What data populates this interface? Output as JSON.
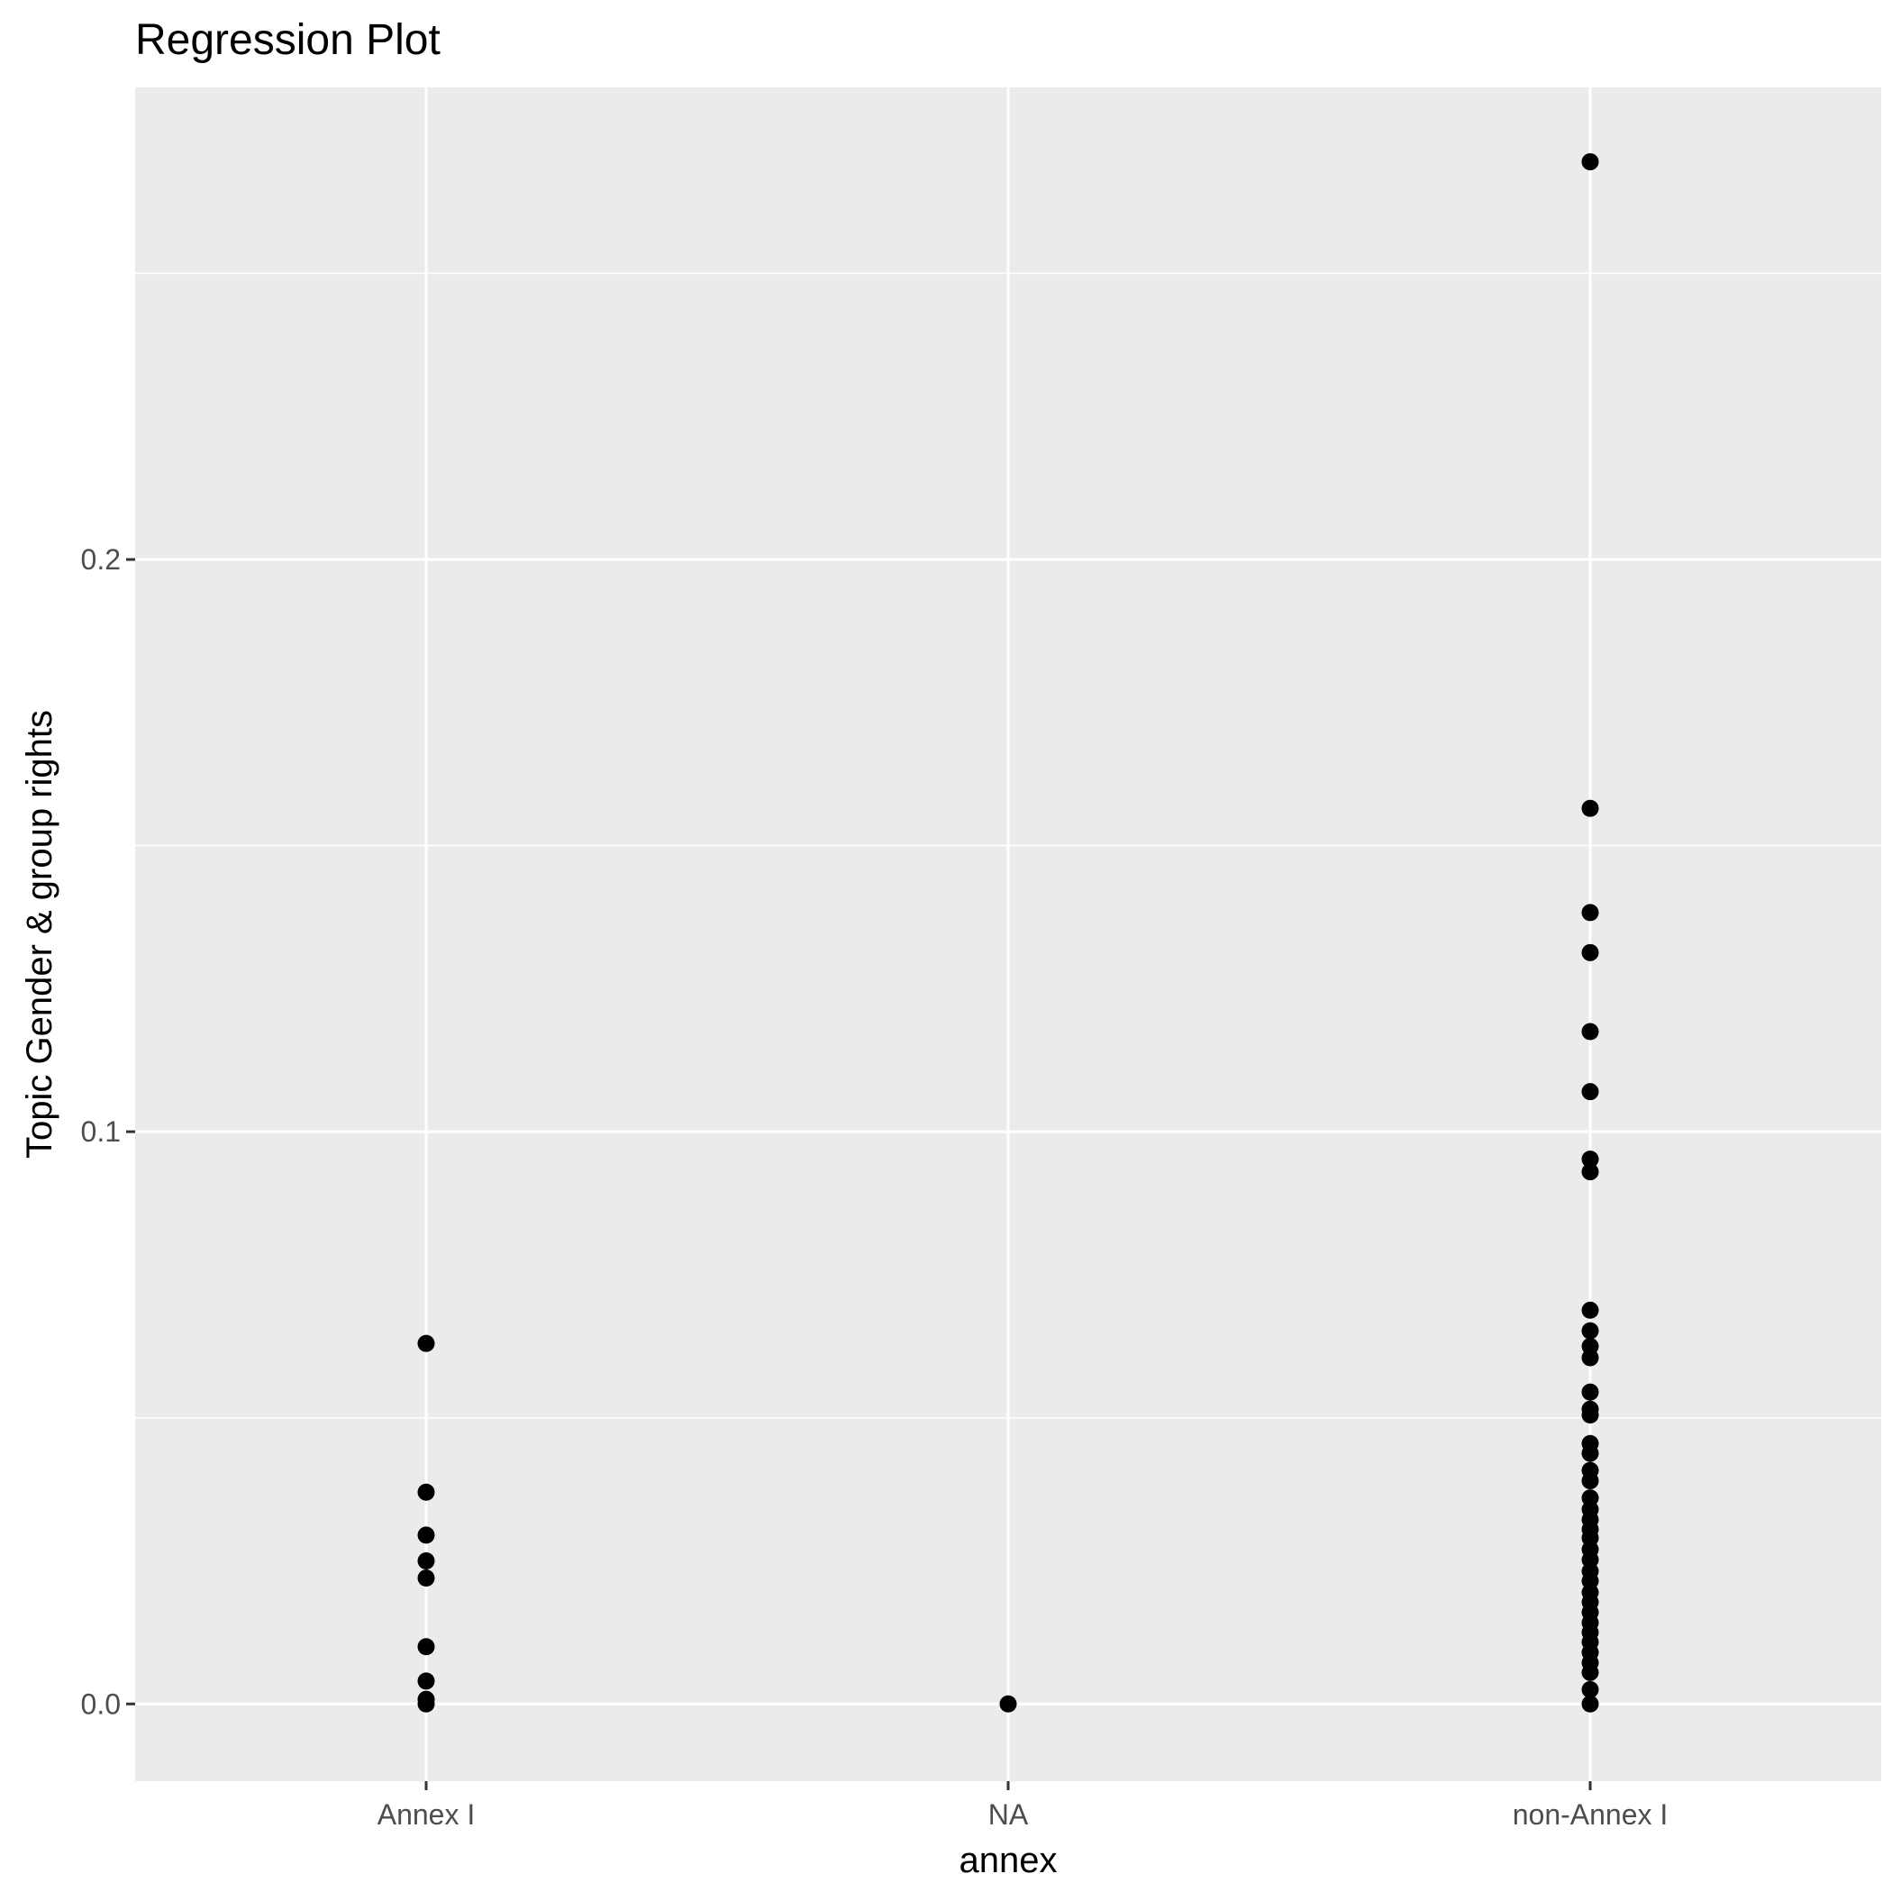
{
  "chart_data": {
    "type": "scatter",
    "title": "Regression Plot",
    "xlabel": "annex",
    "ylabel": "Topic Gender & group rights",
    "categories": [
      "Annex I",
      "NA",
      "non-Annex I"
    ],
    "ylim": [
      -0.0135,
      0.2825
    ],
    "y_ticks": [
      0.0,
      0.1,
      0.2
    ],
    "y_tick_labels": [
      "0.0",
      "0.1",
      "0.2"
    ],
    "y_minor_ticks": [
      0.05,
      0.15,
      0.25
    ],
    "grid": true,
    "legend": "none",
    "colors": {
      "panel": "#ebebeb",
      "grid": "#ffffff",
      "points": "#000000",
      "tick_label": "#4d4d4d"
    },
    "points": [
      {
        "x": "Annex I",
        "y": 0.063
      },
      {
        "x": "Annex I",
        "y": 0.037
      },
      {
        "x": "Annex I",
        "y": 0.0295
      },
      {
        "x": "Annex I",
        "y": 0.025
      },
      {
        "x": "Annex I",
        "y": 0.022
      },
      {
        "x": "Annex I",
        "y": 0.01
      },
      {
        "x": "Annex I",
        "y": 0.004
      },
      {
        "x": "Annex I",
        "y": 0.0008
      },
      {
        "x": "Annex I",
        "y": 0.0
      },
      {
        "x": "NA",
        "y": 0.0
      },
      {
        "x": "non-Annex I",
        "y": 0.2695
      },
      {
        "x": "non-Annex I",
        "y": 0.1565
      },
      {
        "x": "non-Annex I",
        "y": 0.1383
      },
      {
        "x": "non-Annex I",
        "y": 0.1313
      },
      {
        "x": "non-Annex I",
        "y": 0.1175
      },
      {
        "x": "non-Annex I",
        "y": 0.107
      },
      {
        "x": "non-Annex I",
        "y": 0.0952
      },
      {
        "x": "non-Annex I",
        "y": 0.093
      },
      {
        "x": "non-Annex I",
        "y": 0.0688
      },
      {
        "x": "non-Annex I",
        "y": 0.0652
      },
      {
        "x": "non-Annex I",
        "y": 0.0625
      },
      {
        "x": "non-Annex I",
        "y": 0.0605
      },
      {
        "x": "non-Annex I",
        "y": 0.0545
      },
      {
        "x": "non-Annex I",
        "y": 0.0515
      },
      {
        "x": "non-Annex I",
        "y": 0.0505
      },
      {
        "x": "non-Annex I",
        "y": 0.0455
      },
      {
        "x": "non-Annex I",
        "y": 0.0438
      },
      {
        "x": "non-Annex I",
        "y": 0.0408
      },
      {
        "x": "non-Annex I",
        "y": 0.039
      },
      {
        "x": "non-Annex I",
        "y": 0.036
      },
      {
        "x": "non-Annex I",
        "y": 0.034
      },
      {
        "x": "non-Annex I",
        "y": 0.0322
      },
      {
        "x": "non-Annex I",
        "y": 0.0305
      },
      {
        "x": "non-Annex I",
        "y": 0.029
      },
      {
        "x": "non-Annex I",
        "y": 0.027
      },
      {
        "x": "non-Annex I",
        "y": 0.0252
      },
      {
        "x": "non-Annex I",
        "y": 0.0232
      },
      {
        "x": "non-Annex I",
        "y": 0.0215
      },
      {
        "x": "non-Annex I",
        "y": 0.0195
      },
      {
        "x": "non-Annex I",
        "y": 0.0178
      },
      {
        "x": "non-Annex I",
        "y": 0.016
      },
      {
        "x": "non-Annex I",
        "y": 0.0142
      },
      {
        "x": "non-Annex I",
        "y": 0.0125
      },
      {
        "x": "non-Annex I",
        "y": 0.0108
      },
      {
        "x": "non-Annex I",
        "y": 0.009
      },
      {
        "x": "non-Annex I",
        "y": 0.0072
      },
      {
        "x": "non-Annex I",
        "y": 0.0055
      },
      {
        "x": "non-Annex I",
        "y": 0.0025
      },
      {
        "x": "non-Annex I",
        "y": 0.0
      }
    ]
  }
}
